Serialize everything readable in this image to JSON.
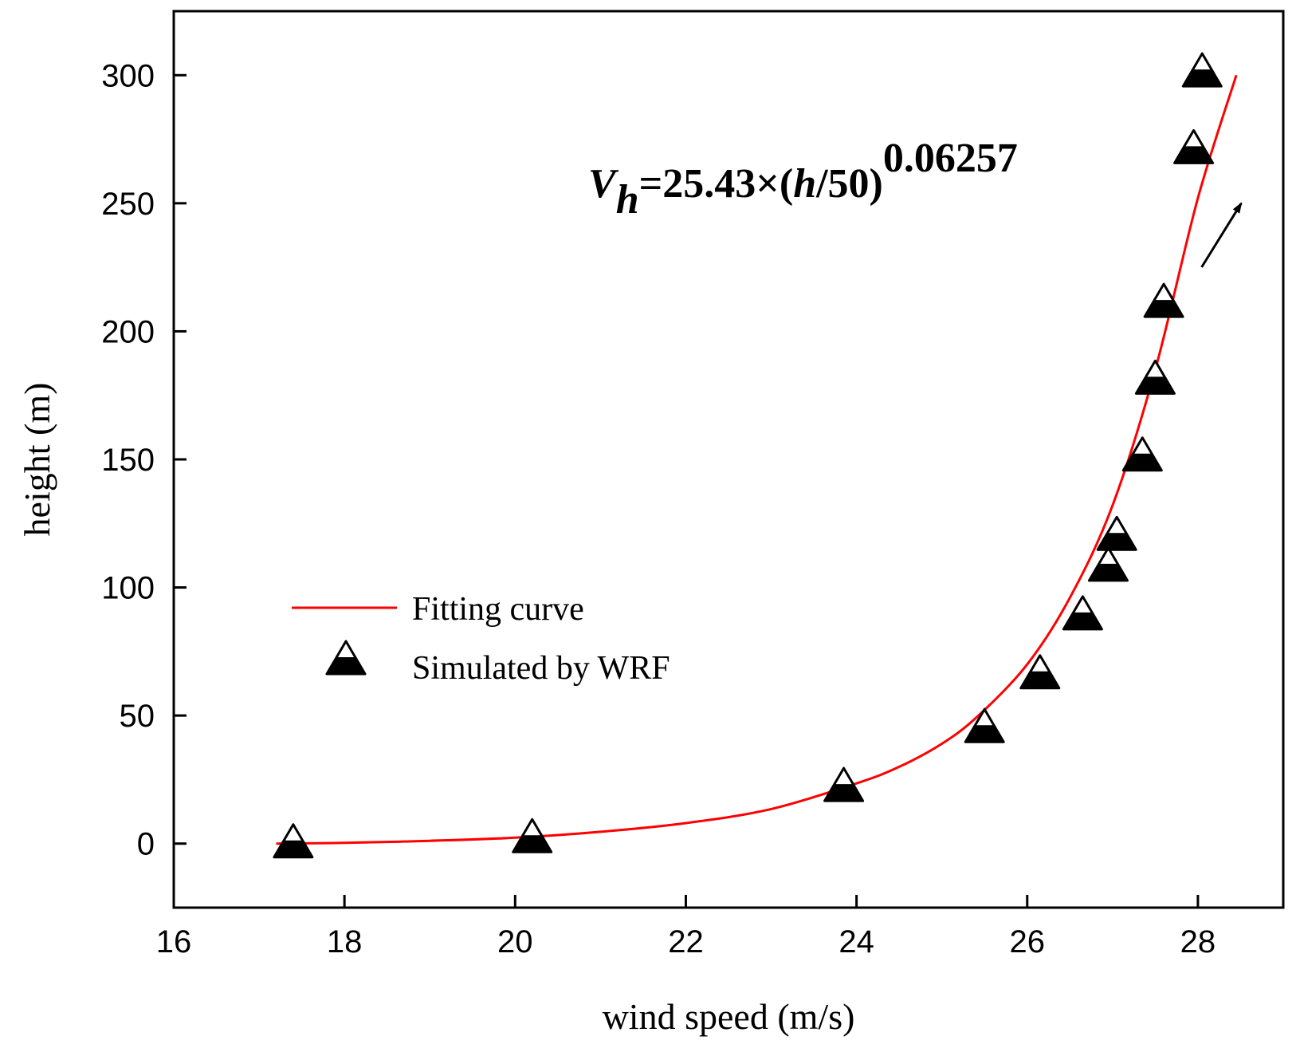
{
  "chart_data": {
    "type": "scatter",
    "title": "",
    "xlabel": "wind speed (m/s)",
    "ylabel": "height (m)",
    "xlim": [
      16,
      29
    ],
    "ylim": [
      -25,
      325
    ],
    "x_ticks": [
      16,
      18,
      20,
      22,
      24,
      26,
      28
    ],
    "y_ticks": [
      0,
      50,
      100,
      150,
      200,
      250,
      300
    ],
    "grid": false,
    "legend_position": "center-left",
    "legend": [
      {
        "label": "Fitting curve",
        "kind": "line",
        "color": "#ff0000"
      },
      {
        "label": "Simulated by WRF",
        "kind": "marker",
        "marker": "triangle",
        "color": "#000000"
      }
    ],
    "series": [
      {
        "name": "Simulated by WRF",
        "kind": "scatter",
        "marker": "triangle",
        "color": "#000000",
        "points": [
          {
            "x": 17.4,
            "y": 0
          },
          {
            "x": 20.2,
            "y": 2
          },
          {
            "x": 23.85,
            "y": 22
          },
          {
            "x": 25.5,
            "y": 45
          },
          {
            "x": 26.15,
            "y": 66
          },
          {
            "x": 26.65,
            "y": 89
          },
          {
            "x": 26.95,
            "y": 108
          },
          {
            "x": 27.05,
            "y": 120
          },
          {
            "x": 27.35,
            "y": 151
          },
          {
            "x": 27.5,
            "y": 181
          },
          {
            "x": 27.6,
            "y": 211
          },
          {
            "x": 27.95,
            "y": 271
          },
          {
            "x": 28.05,
            "y": 301
          }
        ]
      },
      {
        "name": "Fitting curve",
        "kind": "line",
        "color": "#ff0000",
        "formula": {
          "v_ref": 25.43,
          "h_ref": 50,
          "alpha": 0.06257
        },
        "points": [
          {
            "x": 17.2,
            "y": 0
          },
          {
            "x": 18.0,
            "y": 0.3
          },
          {
            "x": 19.0,
            "y": 1.1
          },
          {
            "x": 20.0,
            "y": 2.3
          },
          {
            "x": 21.0,
            "y": 4.6
          },
          {
            "x": 22.0,
            "y": 8.0
          },
          {
            "x": 23.0,
            "y": 13.5
          },
          {
            "x": 24.0,
            "y": 23.5
          },
          {
            "x": 24.5,
            "y": 30
          },
          {
            "x": 25.0,
            "y": 39
          },
          {
            "x": 25.43,
            "y": 50
          },
          {
            "x": 26.0,
            "y": 70
          },
          {
            "x": 26.5,
            "y": 96
          },
          {
            "x": 27.0,
            "y": 132
          },
          {
            "x": 27.5,
            "y": 185
          },
          {
            "x": 28.0,
            "y": 252
          },
          {
            "x": 28.45,
            "y": 300
          }
        ]
      }
    ],
    "annotation": {
      "v": "V",
      "sub": "h",
      "mid": "=25.43×(",
      "h": "h",
      "tail": "/50)",
      "exp": "0.06257",
      "arrow_from": {
        "x": 27.95,
        "y": 235
      },
      "arrow_to": {
        "x": 28.35,
        "y": 250
      }
    }
  },
  "colors": {
    "curve": "#ff0000",
    "marker": "#000000",
    "axis": "#000000"
  }
}
